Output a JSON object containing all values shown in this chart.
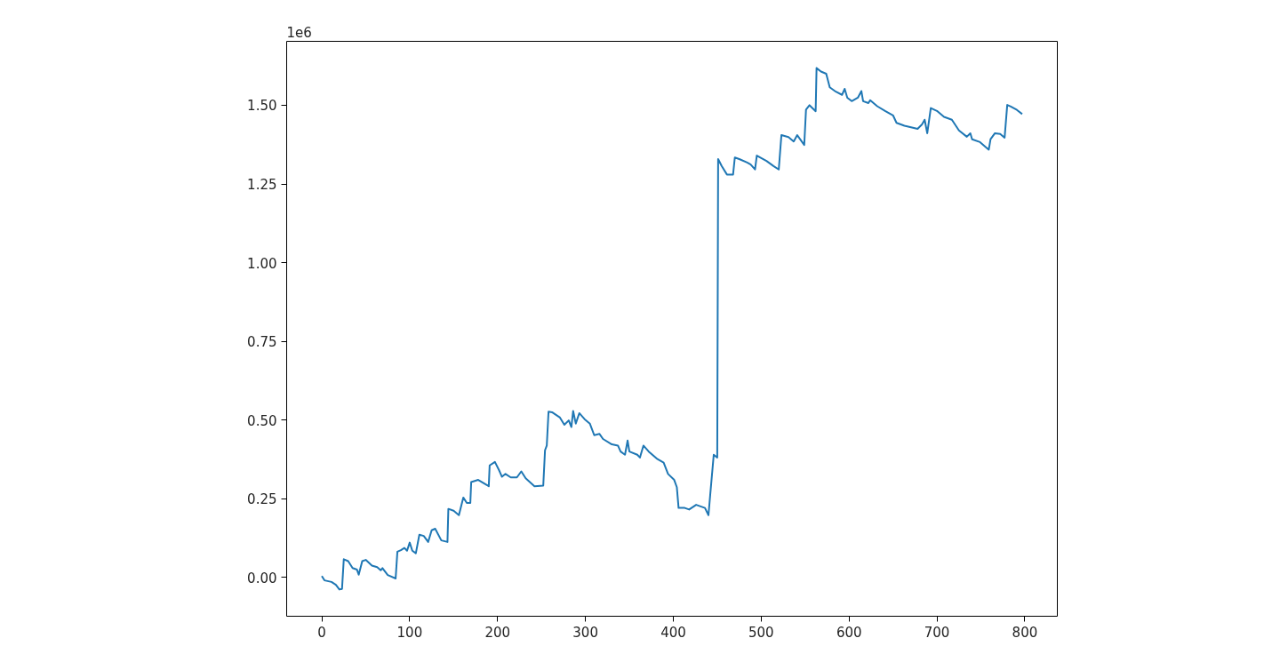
{
  "chart_data": {
    "type": "line",
    "annotations": [
      "1e6"
    ],
    "x": [
      0,
      3,
      11,
      16,
      20,
      23,
      25,
      30,
      35,
      40,
      42,
      46,
      50,
      57,
      63,
      67,
      69,
      75,
      84,
      86,
      90,
      94,
      97,
      100,
      103,
      107,
      111,
      116,
      121,
      125,
      129,
      136,
      143,
      144,
      150,
      156,
      161,
      165,
      169,
      170,
      178,
      190,
      191,
      197,
      202,
      205,
      209,
      215,
      222,
      227,
      232,
      242,
      252,
      254,
      256,
      258,
      262,
      271,
      276,
      281,
      284,
      286,
      289,
      293,
      299,
      305,
      310,
      316,
      320,
      330,
      337,
      340,
      345,
      348,
      350,
      359,
      362,
      366,
      372,
      382,
      389,
      394,
      401,
      404,
      406,
      413,
      418,
      426,
      436,
      440,
      442,
      446,
      450,
      451,
      455,
      461,
      468,
      470,
      475,
      484,
      488,
      493,
      495,
      506,
      514,
      520,
      523,
      531,
      537,
      541,
      549,
      551,
      555,
      562,
      563,
      568,
      574,
      578,
      585,
      592,
      595,
      598,
      603,
      610,
      614,
      616,
      622,
      624,
      632,
      641,
      650,
      654,
      663,
      678,
      683,
      686,
      689,
      693,
      700,
      708,
      717,
      725,
      734,
      738,
      740,
      749,
      759,
      761,
      766,
      772,
      777,
      780,
      784,
      791,
      797
    ],
    "series": [
      {
        "color": "#1f77b4",
        "values": [
          0.005,
          -0.009,
          -0.014,
          -0.023,
          -0.038,
          -0.036,
          0.058,
          0.052,
          0.03,
          0.025,
          0.009,
          0.052,
          0.056,
          0.038,
          0.033,
          0.023,
          0.03,
          0.008,
          -0.003,
          0.082,
          0.087,
          0.094,
          0.085,
          0.111,
          0.085,
          0.077,
          0.136,
          0.132,
          0.113,
          0.15,
          0.155,
          0.118,
          0.113,
          0.218,
          0.212,
          0.198,
          0.254,
          0.237,
          0.237,
          0.303,
          0.31,
          0.29,
          0.356,
          0.367,
          0.339,
          0.32,
          0.329,
          0.318,
          0.318,
          0.337,
          0.315,
          0.29,
          0.292,
          0.404,
          0.419,
          0.527,
          0.525,
          0.508,
          0.485,
          0.499,
          0.478,
          0.529,
          0.489,
          0.522,
          0.503,
          0.489,
          0.452,
          0.456,
          0.44,
          0.423,
          0.419,
          0.4,
          0.39,
          0.435,
          0.4,
          0.39,
          0.381,
          0.419,
          0.4,
          0.376,
          0.365,
          0.329,
          0.31,
          0.287,
          0.221,
          0.221,
          0.216,
          0.231,
          0.221,
          0.198,
          0.263,
          0.39,
          0.381,
          1.329,
          1.307,
          1.28,
          1.28,
          1.334,
          1.329,
          1.318,
          1.312,
          1.296,
          1.34,
          1.323,
          1.307,
          1.296,
          1.405,
          1.399,
          1.385,
          1.405,
          1.374,
          1.486,
          1.5,
          1.481,
          1.618,
          1.607,
          1.6,
          1.557,
          1.543,
          1.533,
          1.552,
          1.524,
          1.513,
          1.524,
          1.545,
          1.513,
          1.507,
          1.516,
          1.497,
          1.482,
          1.468,
          1.444,
          1.435,
          1.425,
          1.439,
          1.454,
          1.411,
          1.491,
          1.482,
          1.463,
          1.454,
          1.42,
          1.4,
          1.411,
          1.392,
          1.383,
          1.359,
          1.392,
          1.411,
          1.409,
          1.397,
          1.501,
          1.496,
          1.485,
          1.472
        ]
      }
    ],
    "xlim": [
      -40,
      837
    ],
    "ylim": [
      -0.123,
      1.703
    ],
    "xticks": [
      0,
      100,
      200,
      300,
      400,
      500,
      600,
      700,
      800
    ],
    "yticks": [
      {
        "value": 0,
        "label": "0.00"
      },
      {
        "value": 0.25,
        "label": "0.25"
      },
      {
        "value": 0.5,
        "label": "0.50"
      },
      {
        "value": 0.75,
        "label": "0.75"
      },
      {
        "value": 1.0,
        "label": "1.00"
      },
      {
        "value": 1.25,
        "label": "1.25"
      },
      {
        "value": 1.5,
        "label": "1.50"
      }
    ],
    "grid": false,
    "line_style": "solid"
  }
}
